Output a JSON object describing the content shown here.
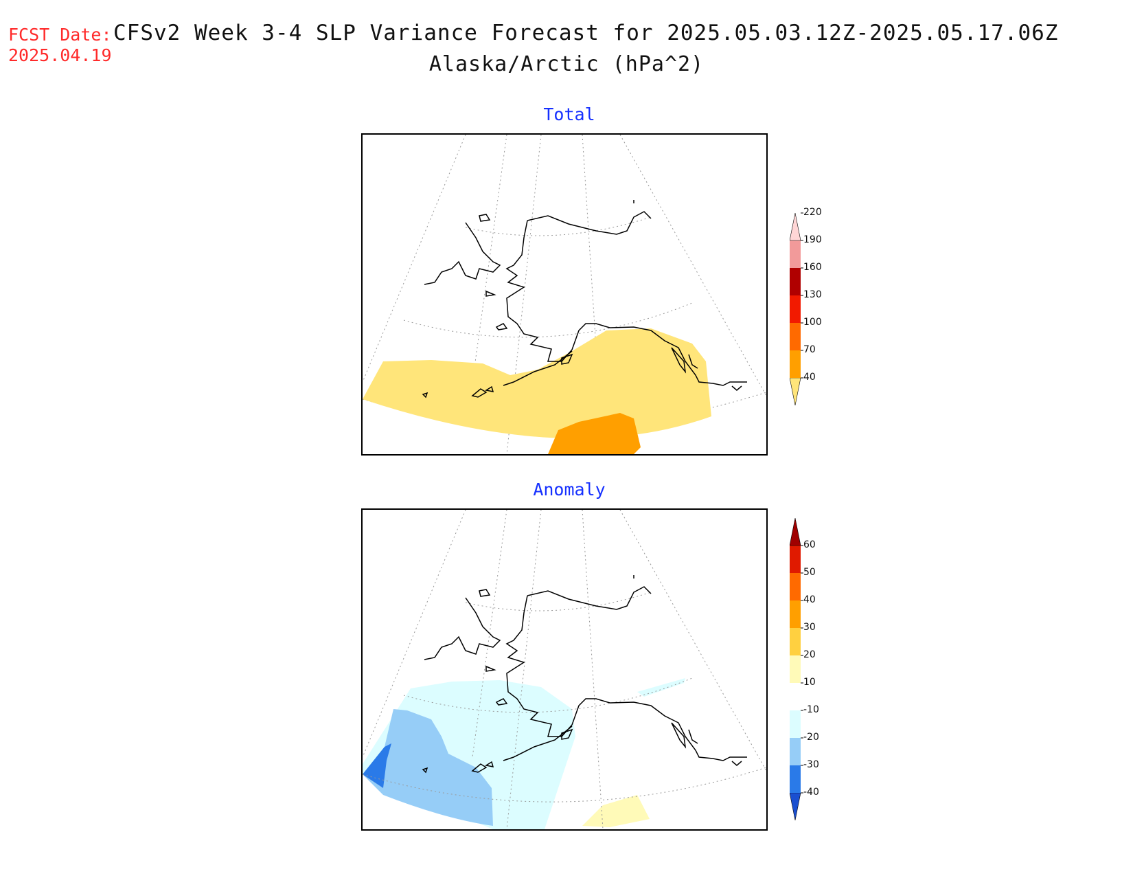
{
  "header": {
    "fcst_label": "FCST Date:",
    "fcst_date": "2025.04.19",
    "title": "CFSv2 Week 3-4 SLP Variance Forecast for 2025.05.03.12Z-2025.05.17.06Z",
    "subtitle": "Alaska/Arctic (hPa^2)"
  },
  "panels": [
    {
      "title": "Total",
      "colorbar": {
        "levels": [
          "40",
          "70",
          "100",
          "130",
          "160",
          "190",
          "220"
        ],
        "colors": [
          "#ffe57a",
          "#ff9f00",
          "#ff6a00",
          "#f21a00",
          "#b00000",
          "#f29a9a",
          "#ffd6d6"
        ]
      }
    },
    {
      "title": "Anomaly",
      "colorbar": {
        "levels": [
          "-40",
          "-30",
          "-20",
          "-10",
          "10",
          "20",
          "30",
          "40",
          "50",
          "60"
        ],
        "colors": [
          "#1a4fd0",
          "#2a7ae8",
          "#96cdf7",
          "#dcfdff",
          "#ffffff",
          "#fffab8",
          "#ffd040",
          "#ff9f00",
          "#ff6a00",
          "#e01a00",
          "#a00000"
        ]
      }
    }
  ]
}
